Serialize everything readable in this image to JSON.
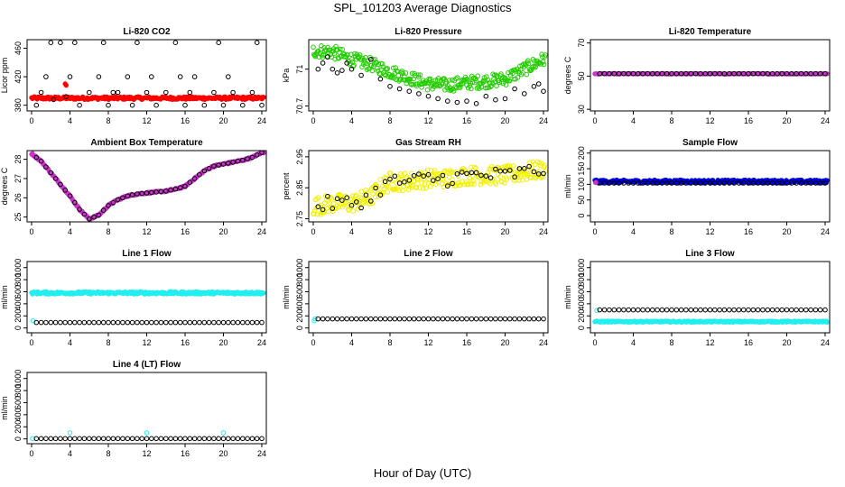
{
  "figure": {
    "title": "SPL_101203  Average Diagnostics",
    "xlabel": "Hour of Day (UTC)"
  },
  "colors": {
    "black": "#000000",
    "red": "#ff0000",
    "green": "#22cc00",
    "magenta": "#cc33cc",
    "yellow": "#f0f000",
    "blue": "#0000dd",
    "cyan": "#22eeee"
  },
  "chart_data": [
    {
      "id": "li820-co2",
      "type": "scatter",
      "title": "Li-820 CO2",
      "ylabel": "Licor ppm",
      "xlim": [
        0,
        24
      ],
      "xticks": [
        0,
        4,
        8,
        12,
        16,
        20,
        24
      ],
      "ylim": [
        372,
        472
      ],
      "yticks": [
        380,
        420,
        460
      ],
      "series": [
        {
          "name": "detail",
          "color": "red",
          "filled": true,
          "band": [
            388,
            392
          ],
          "x_range": [
            0,
            24.2
          ],
          "n": 260
        },
        {
          "name": "outlier",
          "color": "red",
          "filled": true,
          "x": [
            3.5,
            3.6
          ],
          "y": [
            410,
            408
          ]
        },
        {
          "name": "hourly",
          "color": "black",
          "filled": false,
          "x": [
            0.5,
            1,
            1.5,
            2,
            2.3,
            3,
            3.6,
            4,
            4.5,
            5,
            6,
            7,
            7.5,
            8,
            8.5,
            9,
            10,
            10.5,
            11,
            12,
            12.5,
            13,
            14,
            15,
            15.5,
            16,
            16.5,
            17,
            18,
            19,
            19.5,
            20,
            20.5,
            21,
            22,
            23,
            23.5,
            24
          ],
          "y": [
            380,
            398,
            420,
            468,
            388,
            468,
            392,
            420,
            468,
            380,
            398,
            420,
            468,
            380,
            398,
            398,
            420,
            380,
            468,
            398,
            420,
            380,
            398,
            468,
            420,
            380,
            398,
            420,
            380,
            398,
            468,
            380,
            420,
            398,
            380,
            398,
            468,
            380
          ]
        }
      ]
    },
    {
      "id": "li820-pressure",
      "type": "scatter",
      "title": "Li-820 Pressure",
      "ylabel": "kPa",
      "xlim": [
        0,
        24
      ],
      "xticks": [
        0,
        4,
        8,
        12,
        16,
        20,
        24
      ],
      "ylim": [
        70.66,
        71.24
      ],
      "yticks": [
        70.7,
        71.0
      ],
      "series": [
        {
          "name": "detail",
          "color": "green",
          "filled": false,
          "n": 320,
          "x_range": [
            0,
            24.2
          ],
          "curve_x": [
            0,
            2,
            4,
            6,
            8,
            10,
            12,
            14,
            16,
            18,
            20,
            22,
            24
          ],
          "curve_y": [
            71.15,
            71.14,
            71.08,
            71.04,
            70.98,
            70.93,
            70.88,
            70.87,
            70.89,
            70.9,
            70.92,
            71.0,
            71.08
          ],
          "spread": 0.11
        },
        {
          "name": "hourly",
          "color": "black",
          "filled": false,
          "x": [
            0.5,
            1,
            1.5,
            2,
            2.5,
            3,
            3.5,
            4,
            5,
            6,
            7,
            8,
            9,
            10,
            11,
            12,
            13,
            14,
            15,
            16,
            17,
            18,
            19,
            20,
            21,
            22,
            23,
            23.5,
            24
          ],
          "y": [
            71.0,
            71.05,
            71.1,
            71.0,
            70.97,
            70.99,
            71.05,
            71.0,
            70.95,
            71.08,
            70.92,
            70.86,
            70.84,
            70.82,
            70.8,
            70.78,
            70.76,
            70.74,
            70.73,
            70.74,
            70.72,
            70.78,
            70.75,
            70.76,
            70.84,
            70.8,
            70.86,
            70.88,
            70.82
          ]
        }
      ]
    },
    {
      "id": "li820-temperature",
      "type": "scatter",
      "title": "Li-820 Temperature",
      "ylabel": "degrees C",
      "xlim": [
        0,
        24
      ],
      "xticks": [
        0,
        4,
        8,
        12,
        16,
        20,
        24
      ],
      "ylim": [
        29,
        72
      ],
      "yticks": [
        30,
        50,
        70
      ],
      "series": [
        {
          "name": "detail",
          "color": "magenta",
          "filled": true,
          "band": [
            51.2,
            51.6
          ],
          "x_range": [
            0,
            24.2
          ],
          "n": 160
        },
        {
          "name": "hourly",
          "color": "black",
          "filled": false,
          "x_range": [
            0.5,
            24
          ],
          "n": 48,
          "constant": 51.5
        }
      ]
    },
    {
      "id": "ambient-box-temperature",
      "type": "scatter",
      "title": "Ambient Box Temperature",
      "ylabel": "degrees C",
      "xlim": [
        0,
        24
      ],
      "xticks": [
        0,
        4,
        8,
        12,
        16,
        20,
        24
      ],
      "ylim": [
        24.75,
        28.45
      ],
      "yticks": [
        25,
        26,
        27,
        28
      ],
      "series": [
        {
          "name": "detail",
          "color": "magenta",
          "filled": true,
          "n": 300,
          "x_range": [
            0,
            24.2
          ],
          "curve_x": [
            0,
            1,
            2,
            3,
            4,
            5,
            6,
            7,
            8,
            9,
            10,
            11,
            12,
            13,
            14,
            15,
            16,
            17,
            18,
            19,
            20,
            21,
            22,
            23,
            24
          ],
          "curve_y": [
            28.3,
            27.9,
            27.3,
            26.7,
            26.1,
            25.4,
            24.9,
            25.1,
            25.6,
            25.9,
            26.1,
            26.2,
            26.25,
            26.3,
            26.35,
            26.45,
            26.6,
            27.0,
            27.4,
            27.65,
            27.75,
            27.85,
            27.95,
            28.1,
            28.35
          ],
          "spread": 0.08
        },
        {
          "name": "hourly",
          "color": "black",
          "filled": false,
          "n": 48,
          "x_range": [
            0.5,
            24
          ],
          "follow": true
        }
      ]
    },
    {
      "id": "gas-stream-rh",
      "type": "scatter",
      "title": "Gas Stream RH",
      "ylabel": "percent",
      "xlim": [
        0,
        24
      ],
      "xticks": [
        0,
        4,
        8,
        12,
        16,
        20,
        24
      ],
      "ylim": [
        2.74,
        2.97
      ],
      "yticks": [
        2.75,
        2.85,
        2.95
      ],
      "series": [
        {
          "name": "detail",
          "color": "yellow",
          "filled": false,
          "n": 320,
          "x_range": [
            0,
            24.2
          ],
          "curve_x": [
            0,
            2,
            4,
            6,
            7,
            8,
            10,
            12,
            14,
            16,
            18,
            20,
            22,
            24
          ],
          "curve_y": [
            2.79,
            2.8,
            2.8,
            2.82,
            2.85,
            2.87,
            2.87,
            2.88,
            2.88,
            2.89,
            2.89,
            2.89,
            2.9,
            2.91
          ],
          "spread": 0.06
        },
        {
          "name": "hourly",
          "color": "black",
          "filled": false,
          "n": 48,
          "x_range": [
            0.5,
            24
          ],
          "follow": true,
          "jitter": 0.025
        }
      ]
    },
    {
      "id": "sample-flow",
      "type": "scatter",
      "title": "Sample Flow",
      "ylabel": "ml/min",
      "xlim": [
        0,
        24
      ],
      "xticks": [
        0,
        4,
        8,
        12,
        16,
        20,
        24
      ],
      "ylim": [
        -20,
        208
      ],
      "yticks": [
        0,
        50,
        100,
        150,
        200
      ],
      "series": [
        {
          "name": "detail",
          "color": "blue",
          "filled": true,
          "band": [
            104,
            114
          ],
          "x_range": [
            0,
            24.2
          ],
          "n": 320
        },
        {
          "name": "hourly",
          "color": "black",
          "filled": false,
          "x_range": [
            0.5,
            24
          ],
          "n": 48,
          "constant": 104
        },
        {
          "name": "start",
          "color": "magenta",
          "filled": true,
          "x": [
            0.1
          ],
          "y": [
            106
          ]
        }
      ]
    },
    {
      "id": "line-1-flow",
      "type": "scatter",
      "title": "Line 1 Flow",
      "ylabel": "ml/min",
      "xlim": [
        0,
        24
      ],
      "xticks": [
        0,
        4,
        8,
        12,
        16,
        20,
        24
      ],
      "ylim": [
        -80,
        1100
      ],
      "yticks": [
        0,
        200,
        400,
        600,
        800,
        1000
      ],
      "series": [
        {
          "name": "detail",
          "color": "cyan",
          "filled": true,
          "band": [
            560,
            600
          ],
          "x_range": [
            0,
            24.2
          ],
          "n": 300
        },
        {
          "name": "start",
          "color": "cyan",
          "filled": false,
          "x": [
            0.15
          ],
          "y": [
            120
          ]
        },
        {
          "name": "hourly",
          "color": "black",
          "filled": false,
          "x_range": [
            0.5,
            24
          ],
          "n": 48,
          "constant": 90
        }
      ]
    },
    {
      "id": "line-2-flow",
      "type": "scatter",
      "title": "Line 2 Flow",
      "ylabel": "ml/min",
      "xlim": [
        0,
        24
      ],
      "xticks": [
        0,
        4,
        8,
        12,
        16,
        20,
        24
      ],
      "ylim": [
        -80,
        1100
      ],
      "yticks": [
        0,
        200,
        400,
        600,
        800,
        1000
      ],
      "series": [
        {
          "name": "start",
          "color": "cyan",
          "filled": false,
          "x": [
            0.1,
            0.2
          ],
          "y": [
            120,
            150
          ]
        },
        {
          "name": "hourly",
          "color": "black",
          "filled": false,
          "x_range": [
            0.5,
            24
          ],
          "n": 48,
          "constant": 150
        }
      ]
    },
    {
      "id": "line-3-flow",
      "type": "scatter",
      "title": "Line 3 Flow",
      "ylabel": "ml/min",
      "xlim": [
        0,
        24
      ],
      "xticks": [
        0,
        4,
        8,
        12,
        16,
        20,
        24
      ],
      "ylim": [
        -80,
        1100
      ],
      "yticks": [
        0,
        200,
        400,
        600,
        800,
        1000
      ],
      "series": [
        {
          "name": "detail",
          "color": "cyan",
          "filled": true,
          "band": [
            95,
            115
          ],
          "x_range": [
            0,
            24.2
          ],
          "n": 300
        },
        {
          "name": "start",
          "color": "cyan",
          "filled": false,
          "x": [
            0.2
          ],
          "y": [
            290
          ]
        },
        {
          "name": "hourly",
          "color": "black",
          "filled": false,
          "x_range": [
            0.5,
            24
          ],
          "n": 48,
          "constant": 300
        }
      ]
    },
    {
      "id": "line-4-lt-flow",
      "type": "scatter",
      "title": "Line 4 (LT) Flow",
      "ylabel": "ml/min",
      "xlim": [
        0,
        24
      ],
      "xticks": [
        0,
        4,
        8,
        12,
        16,
        20,
        24
      ],
      "ylim": [
        -80,
        1100
      ],
      "yticks": [
        0,
        200,
        400,
        600,
        800,
        1000
      ],
      "series": [
        {
          "name": "spikes",
          "color": "cyan",
          "filled": false,
          "x": [
            0.1,
            4,
            12,
            20
          ],
          "y": [
            5,
            100,
            100,
            100
          ]
        },
        {
          "name": "hourly",
          "color": "black",
          "filled": false,
          "x_range": [
            0.5,
            24
          ],
          "n": 48,
          "constant": 5
        }
      ]
    }
  ]
}
